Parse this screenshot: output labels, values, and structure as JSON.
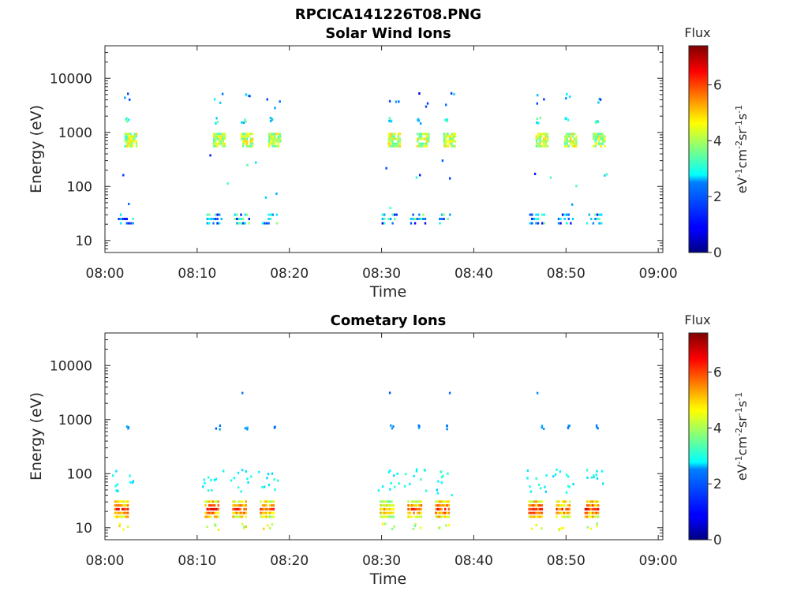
{
  "figure_title": "RPCICA141226T08.PNG",
  "chart_data": [
    {
      "type": "heatmap",
      "title": "Solar Wind Ions",
      "xlabel": "Time",
      "ylabel": "Energy (eV)",
      "y_scale": "log",
      "ylim": [
        6,
        40000
      ],
      "xlim": [
        "08:00",
        "09:00"
      ],
      "x_ticks": [
        "08:00",
        "08:10",
        "08:20",
        "08:30",
        "08:40",
        "08:50",
        "09:00"
      ],
      "y_ticks": [
        "10",
        "100",
        "1000",
        "10000"
      ],
      "colorbar": {
        "title": "Flux",
        "label": "eV-1cm-2sr-1s-1",
        "range": [
          0,
          7.4
        ],
        "ticks": [
          "0",
          "2",
          "4",
          "6"
        ],
        "colormap": "jet"
      },
      "grid": false,
      "bursts": [
        {
          "time_min": 2.7,
          "main_energy_eV": 720,
          "low_energy_eV": 25
        },
        {
          "time_min": 12.3,
          "main_energy_eV": 720,
          "low_energy_eV": 25
        },
        {
          "time_min": 15.3,
          "main_energy_eV": 720,
          "low_energy_eV": 25
        },
        {
          "time_min": 18.3,
          "main_energy_eV": 720,
          "low_energy_eV": 25
        },
        {
          "time_min": 31.3,
          "main_energy_eV": 720,
          "low_energy_eV": 25
        },
        {
          "time_min": 34.4,
          "main_energy_eV": 720,
          "low_energy_eV": 25
        },
        {
          "time_min": 37.3,
          "main_energy_eV": 720,
          "low_energy_eV": 25
        },
        {
          "time_min": 47.3,
          "main_energy_eV": 720,
          "low_energy_eV": 25
        },
        {
          "time_min": 50.4,
          "main_energy_eV": 720,
          "low_energy_eV": 25
        },
        {
          "time_min": 53.5,
          "main_energy_eV": 720,
          "low_energy_eV": 25
        }
      ]
    },
    {
      "type": "heatmap",
      "title": "Cometary Ions",
      "xlabel": "Time",
      "ylabel": "Energy (eV)",
      "y_scale": "log",
      "ylim": [
        6,
        40000
      ],
      "xlim": [
        "08:00",
        "09:00"
      ],
      "x_ticks": [
        "08:00",
        "08:10",
        "08:20",
        "08:30",
        "08:40",
        "08:50",
        "09:00"
      ],
      "y_ticks": [
        "10",
        "100",
        "1000",
        "10000"
      ],
      "colorbar": {
        "title": "Flux",
        "label": "eV-1cm-2sr-1s-1",
        "range": [
          0,
          7.4
        ],
        "ticks": [
          "0",
          "2",
          "4",
          "6"
        ],
        "colormap": "jet"
      },
      "grid": false,
      "bursts": [
        {
          "time_min": 1.8,
          "peak_energy_eV": 22,
          "peak_flux": 6.8
        },
        {
          "time_min": 11.6,
          "peak_energy_eV": 22,
          "peak_flux": 6.8
        },
        {
          "time_min": 14.6,
          "peak_energy_eV": 22,
          "peak_flux": 6.8
        },
        {
          "time_min": 17.6,
          "peak_energy_eV": 22,
          "peak_flux": 6.5
        },
        {
          "time_min": 30.6,
          "peak_energy_eV": 22,
          "peak_flux": 6.0
        },
        {
          "time_min": 33.6,
          "peak_energy_eV": 22,
          "peak_flux": 6.5
        },
        {
          "time_min": 36.6,
          "peak_energy_eV": 22,
          "peak_flux": 6.8
        },
        {
          "time_min": 46.7,
          "peak_energy_eV": 22,
          "peak_flux": 6.8
        },
        {
          "time_min": 49.7,
          "peak_energy_eV": 22,
          "peak_flux": 6.5
        },
        {
          "time_min": 52.8,
          "peak_energy_eV": 22,
          "peak_flux": 6.8
        }
      ]
    }
  ]
}
